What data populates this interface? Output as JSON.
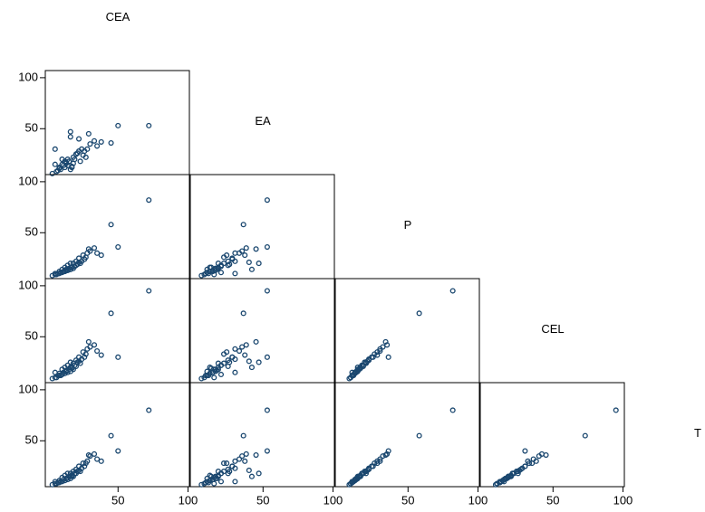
{
  "chart_data": {
    "type": "scatter_matrix",
    "color": "#1a476f",
    "xlim": [
      -2,
      101
    ],
    "ylim": [
      5,
      107
    ],
    "xticks": [
      50,
      100
    ],
    "yticks": [
      50,
      100
    ],
    "variables": [
      {
        "name": "CEA",
        "values": [
          72,
          45,
          50,
          16,
          16,
          5,
          8,
          10,
          12,
          14,
          18,
          20,
          22,
          25,
          28,
          30,
          33,
          6,
          9,
          11,
          13,
          15,
          17,
          19,
          21,
          24,
          27,
          3,
          7,
          12,
          14,
          16,
          18,
          20,
          23,
          26,
          10,
          8,
          5,
          13,
          17,
          22,
          35,
          38,
          29
        ]
      },
      {
        "name": "EA",
        "values": [
          53,
          36,
          53,
          47,
          42,
          30,
          12,
          15,
          18,
          20,
          22,
          25,
          28,
          24,
          30,
          35,
          38,
          8,
          10,
          14,
          16,
          18,
          12,
          20,
          26,
          30,
          22,
          6,
          9,
          12,
          14,
          10,
          16,
          25,
          18,
          28,
          20,
          11,
          15,
          17,
          13,
          40,
          33,
          37,
          45
        ]
      },
      {
        "name": "P",
        "values": [
          82,
          58,
          36,
          20,
          14,
          10,
          12,
          14,
          16,
          18,
          20,
          22,
          25,
          28,
          30,
          32,
          35,
          9,
          11,
          12,
          13,
          15,
          16,
          17,
          19,
          22,
          26,
          8,
          10,
          12,
          13,
          14,
          15,
          18,
          20,
          24,
          11,
          10,
          9,
          14,
          16,
          21,
          30,
          28,
          34
        ]
      },
      {
        "name": "CEL",
        "values": [
          95,
          73,
          30,
          25,
          20,
          15,
          14,
          18,
          20,
          22,
          24,
          27,
          30,
          35,
          38,
          40,
          42,
          10,
          12,
          15,
          16,
          18,
          20,
          22,
          25,
          28,
          33,
          9,
          12,
          14,
          15,
          16,
          18,
          21,
          24,
          30,
          13,
          12,
          10,
          17,
          19,
          26,
          36,
          32,
          45
        ]
      },
      {
        "name": "T",
        "values": [
          80,
          55,
          40,
          18,
          15,
          10,
          11,
          14,
          16,
          18,
          20,
          22,
          25,
          28,
          30,
          35,
          37,
          8,
          10,
          12,
          13,
          15,
          16,
          18,
          20,
          23,
          28,
          7,
          9,
          11,
          12,
          13,
          15,
          18,
          20,
          25,
          10,
          9,
          8,
          13,
          15,
          21,
          32,
          30,
          36
        ]
      }
    ]
  }
}
